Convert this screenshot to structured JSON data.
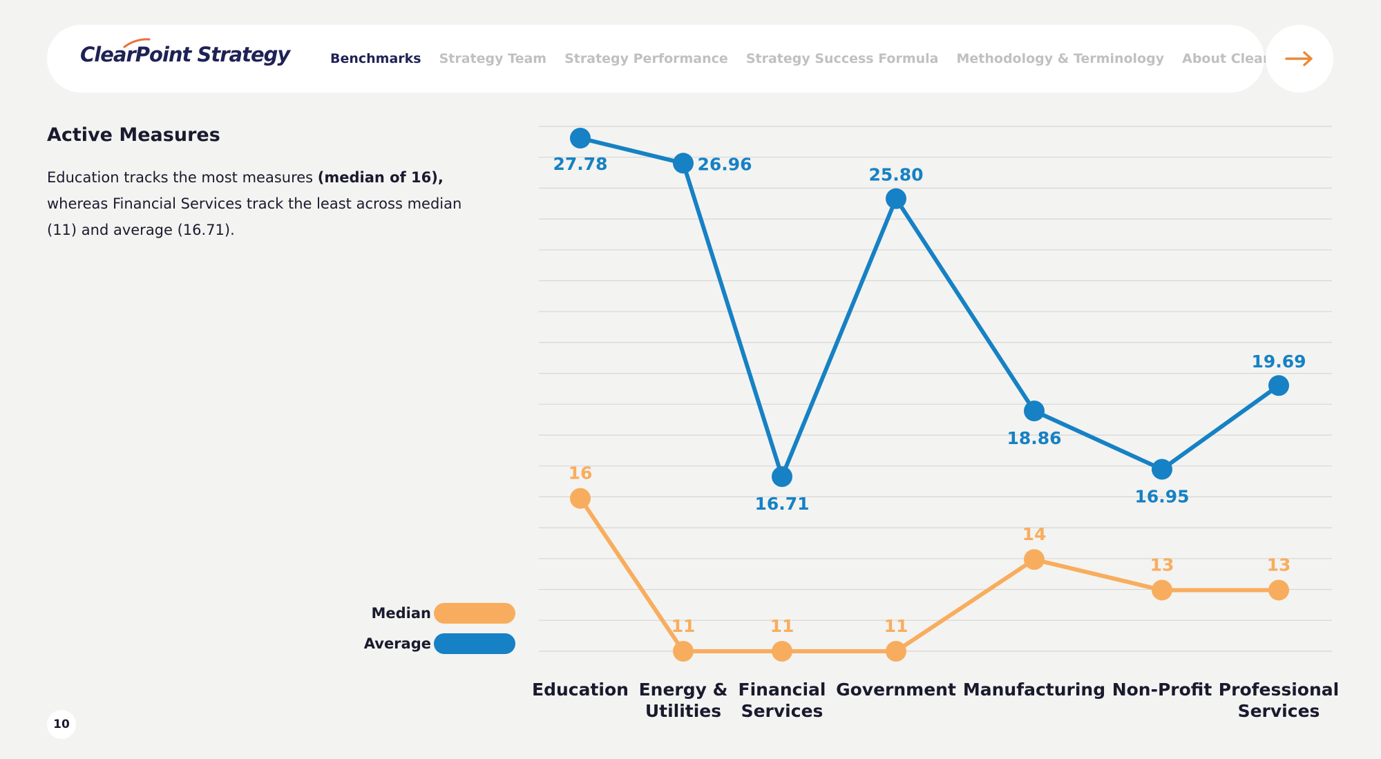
{
  "header": {
    "logo_text": "ClearPoint Strategy",
    "nav": [
      {
        "label": "Benchmarks",
        "active": true
      },
      {
        "label": "Strategy Team",
        "active": false
      },
      {
        "label": "Strategy Performance",
        "active": false
      },
      {
        "label": "Strategy Success Formula",
        "active": false
      },
      {
        "label": "Methodology & Terminology",
        "active": false
      },
      {
        "label": "About ClearPoint",
        "active": false
      }
    ],
    "next_icon": "arrow-right-icon"
  },
  "section": {
    "title": "Active Measures",
    "desc_part1": "Education tracks the most measures ",
    "desc_bold": "(median of 16),",
    "desc_part2": " whereas Financial Services track the least across median (11) and average (16.71)."
  },
  "page_number": "10",
  "colors": {
    "median": "#f8ad5e",
    "average": "#1681c4",
    "grid": "#d6d6d6",
    "accent_arrow": "#ec8a3a"
  },
  "chart_data": {
    "type": "line",
    "title": "",
    "xlabel": "",
    "ylabel": "",
    "categories": [
      [
        "Education"
      ],
      [
        "Energy &",
        "Utilities"
      ],
      [
        "Financial",
        "Services"
      ],
      [
        "Government"
      ],
      [
        "Manufacturing"
      ],
      [
        "Non-Profit"
      ],
      [
        "Professional",
        "Services"
      ]
    ],
    "series": [
      {
        "name": "Median",
        "values": [
          16,
          11,
          11,
          11,
          14,
          13,
          13
        ],
        "labels": [
          "16",
          "11",
          "11",
          "11",
          "14",
          "13",
          "13"
        ]
      },
      {
        "name": "Average",
        "values": [
          27.78,
          26.96,
          16.71,
          25.8,
          18.86,
          16.95,
          19.69
        ],
        "labels": [
          "27.78",
          "26.96",
          "16.71",
          "25.80",
          "18.86",
          "16.95",
          "19.69"
        ]
      }
    ],
    "ylim": [
      11,
      27.78
    ],
    "grid": true,
    "legend": "left"
  }
}
